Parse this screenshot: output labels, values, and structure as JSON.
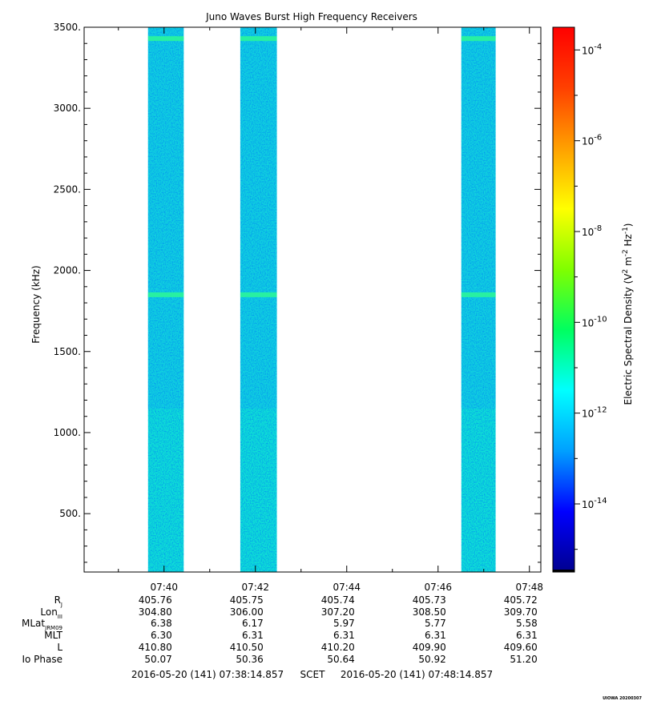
{
  "chart_data": {
    "type": "heatmap",
    "title": "Juno Waves Burst High Frequency Receivers",
    "xlabel": "",
    "ylabel": "Frequency (kHz)",
    "ylim": [
      140,
      3500
    ],
    "y_ticks": [
      {
        "value": 3500,
        "label": "3500."
      },
      {
        "value": 3000,
        "label": "3000."
      },
      {
        "value": 2500,
        "label": "2500."
      },
      {
        "value": 2000,
        "label": "2000."
      },
      {
        "value": 1500,
        "label": "1500."
      },
      {
        "value": 1000,
        "label": "1000."
      },
      {
        "value": 500,
        "label": "500."
      }
    ],
    "xlim_minutes": [
      0,
      10
    ],
    "x_ticks": [
      {
        "minute": 1.75,
        "label": "07:40"
      },
      {
        "minute": 3.75,
        "label": "07:42"
      },
      {
        "minute": 5.75,
        "label": "07:44"
      },
      {
        "minute": 7.75,
        "label": "07:46"
      },
      {
        "minute": 9.75,
        "label": "07:48"
      }
    ],
    "data_bands": [
      {
        "start_min": 1.4,
        "end_min": 2.18
      },
      {
        "start_min": 3.42,
        "end_min": 4.22
      },
      {
        "start_min": 8.26,
        "end_min": 9.01
      }
    ],
    "spectral_density_typical": "10^-12",
    "spectral_density_bright_lines_khz": [
      3430,
      1850
    ],
    "colorbar": {
      "label": "Electric Spectral Density (V² m⁻² Hz⁻¹)",
      "label_parts": {
        "base": "Electric Spectral Density (V",
        "sup1": "2",
        "mid1": " m",
        "sup2": "-2",
        "mid2": " Hz",
        "sup3": "-1",
        "end": ")"
      },
      "scale": "log",
      "range_exp": [
        -15.5,
        -3.5
      ],
      "ticks": [
        {
          "exp": -4,
          "label_base": "10",
          "label_exp": "-4"
        },
        {
          "exp": -6,
          "label_base": "10",
          "label_exp": "-6"
        },
        {
          "exp": -8,
          "label_base": "10",
          "label_exp": "-8"
        },
        {
          "exp": -10,
          "label_base": "10",
          "label_exp": "-10"
        },
        {
          "exp": -12,
          "label_base": "10",
          "label_exp": "-12"
        },
        {
          "exp": -14,
          "label_base": "10",
          "label_exp": "-14"
        }
      ],
      "colors": [
        "#00008f",
        "#0000ff",
        "#00a0ff",
        "#00ffff",
        "#00ff60",
        "#80ff00",
        "#ffff00",
        "#ffa000",
        "#ff4000",
        "#ff0000"
      ]
    },
    "ephemeris": {
      "rows": [
        {
          "label": "R",
          "sub": "J",
          "values": [
            "405.76",
            "405.75",
            "405.74",
            "405.73",
            "405.72"
          ]
        },
        {
          "label": "Lon",
          "sub": "III",
          "values": [
            "304.80",
            "306.00",
            "307.20",
            "308.50",
            "309.70"
          ]
        },
        {
          "label": "MLat",
          "sub": "JRM09",
          "values": [
            "6.38",
            "6.17",
            "5.97",
            "5.77",
            "5.58"
          ]
        },
        {
          "label": "MLT",
          "sub": "",
          "values": [
            "6.30",
            "6.31",
            "6.31",
            "6.31",
            "6.31"
          ]
        },
        {
          "label": "L",
          "sub": "",
          "values": [
            "410.80",
            "410.50",
            "410.20",
            "409.90",
            "409.60"
          ]
        },
        {
          "label": "Io Phase",
          "sub": "",
          "values": [
            "50.07",
            "50.36",
            "50.64",
            "50.92",
            "51.20"
          ]
        }
      ]
    },
    "time_range": {
      "start": "2016-05-20 (141) 07:38:14.857",
      "frame": "SCET",
      "end": "2016-05-20 (141) 07:48:14.857"
    },
    "stamp": "UIOWA 20200307"
  }
}
